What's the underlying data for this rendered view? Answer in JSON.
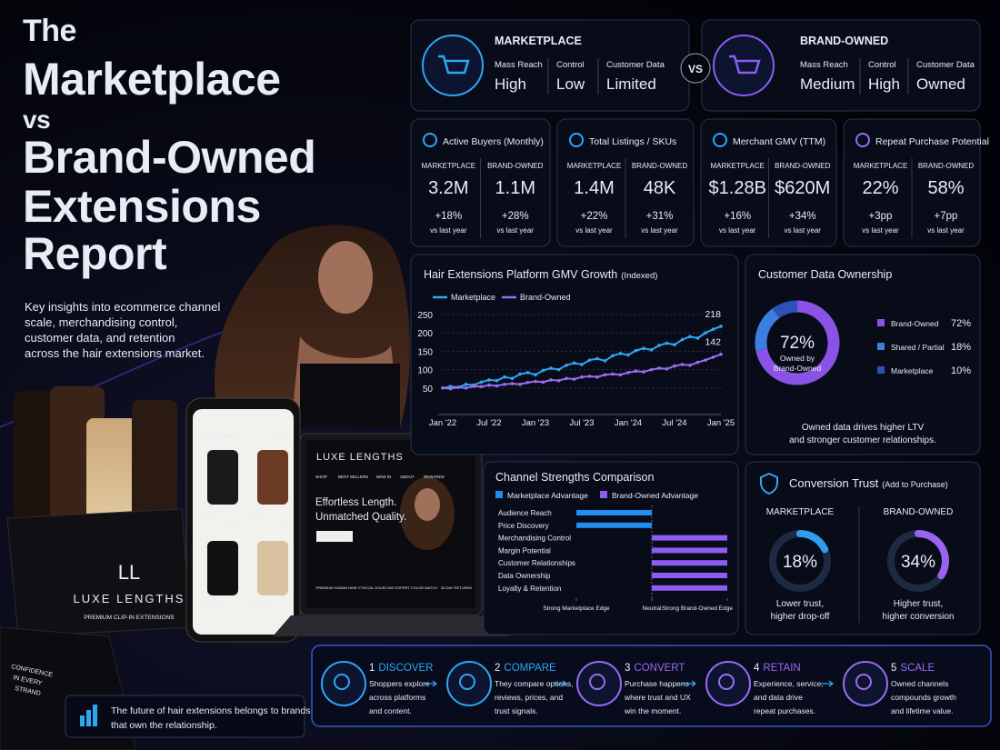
{
  "header": {
    "title_lines": [
      "The",
      "Marketplace",
      "vs",
      "Brand-Owned",
      "Extensions",
      "Report"
    ],
    "subtitle_lines": [
      "Key insights into ecommerce channel",
      "scale, merchandising control,",
      "customer data, and retention",
      "across the hair extensions market."
    ]
  },
  "callout": {
    "line1": "The future of hair extensions belongs to brands",
    "line2": "that own the relationship."
  },
  "comparison": {
    "vs": "VS",
    "panels": [
      {
        "title": "MARKETPLACE",
        "metrics": [
          {
            "label": "Mass Reach",
            "value": "High"
          },
          {
            "label": "Control",
            "value": "Low"
          },
          {
            "label": "Customer Data",
            "value": "Limited"
          }
        ]
      },
      {
        "title": "BRAND-OWNED",
        "metrics": [
          {
            "label": "Mass Reach",
            "value": "Medium"
          },
          {
            "label": "Control",
            "value": "High"
          },
          {
            "label": "Customer Data",
            "value": "Owned"
          }
        ]
      }
    ]
  },
  "kpis": [
    {
      "title": "Active Buyers (Monthly)",
      "columns": [
        {
          "label": "MARKETPLACE",
          "value": "3.2M",
          "change": "+18%",
          "note": "vs last year"
        },
        {
          "label": "BRAND-OWNED",
          "value": "1.1M",
          "change": "+28%",
          "note": "vs last year"
        }
      ]
    },
    {
      "title": "Total Listings / SKUs",
      "columns": [
        {
          "label": "MARKETPLACE",
          "value": "1.4M",
          "change": "+22%",
          "note": "vs last year"
        },
        {
          "label": "BRAND-OWNED",
          "value": "48K",
          "change": "+31%",
          "note": "vs last year"
        }
      ]
    },
    {
      "title": "Merchant GMV (TTM)",
      "columns": [
        {
          "label": "MARKETPLACE",
          "value": "$1.28B",
          "change": "+16%",
          "note": "vs last year"
        },
        {
          "label": "BRAND-OWNED",
          "value": "$620M",
          "change": "+34%",
          "note": "vs last year"
        }
      ]
    },
    {
      "title": "Repeat Purchase Potential",
      "columns": [
        {
          "label": "MARKETPLACE",
          "value": "22%",
          "change": "+3pp",
          "note": "vs last year"
        },
        {
          "label": "BRAND-OWNED",
          "value": "58%",
          "change": "+7pp",
          "note": "vs last year"
        }
      ]
    }
  ],
  "process": [
    {
      "number": "1",
      "title": "DISCOVER",
      "text": [
        "Shoppers explore",
        "across platforms",
        "and content."
      ]
    },
    {
      "number": "2",
      "title": "COMPARE",
      "text": [
        "They compare options,",
        "reviews, prices, and",
        "trust signals."
      ]
    },
    {
      "number": "3",
      "title": "CONVERT",
      "text": [
        "Purchase happens",
        "where trust and UX",
        "win the moment."
      ]
    },
    {
      "number": "4",
      "title": "RETAIN",
      "text": [
        "Experience, service,",
        "and data drive",
        "repeat purchases."
      ]
    },
    {
      "number": "5",
      "title": "SCALE",
      "text": [
        "Owned channels",
        "compounds growth",
        "and lifetime value."
      ]
    }
  ],
  "product": {
    "monogram": "LL",
    "brand": "LUXE LENGTHS",
    "tagline": "PREMIUM CLIP-IN EXTENSIONS",
    "side_box": [
      "CONFIDENCE",
      "IN EVERY",
      "STRAND"
    ],
    "phone": {
      "heading": "Top Results",
      "filter": "Filters",
      "items": [
        {
          "price": "$79",
          "cents": "99",
          "reviews": "(4,632)"
        },
        {
          "price": "$89",
          "cents": "99",
          "reviews": "(2,118)"
        },
        {
          "price": "$69",
          "cents": "99",
          "reviews": "(2,843)"
        },
        {
          "price": "$74",
          "cents": "99",
          "reviews": "(1,824)"
        }
      ]
    },
    "laptop": {
      "brand": "LUXE LENGTHS",
      "nav": [
        "SHOP",
        "BEST SELLERS",
        "NEW IN",
        "ABOUT",
        "REWARDS"
      ],
      "headline": [
        "Effortless Length.",
        "Unmatched Quality."
      ],
      "button": "SHOP NOW",
      "features": [
        "PREMIUM HUMAN HAIR",
        "ETHICAL SOURCING",
        "EXPERT COLOR MATCH",
        "30-DAY RETURNS"
      ]
    }
  },
  "chart_data": [
    {
      "type": "line",
      "title": "Hair Extensions Platform GMV Growth",
      "title_note": "(Indexed)",
      "categories": [
        "Jan '22",
        null,
        null,
        null,
        null,
        null,
        "Jul '22",
        null,
        null,
        null,
        null,
        null,
        "Jan '23",
        null,
        null,
        null,
        null,
        null,
        "Jul '23",
        null,
        null,
        null,
        null,
        null,
        "Jan '24",
        null,
        null,
        null,
        null,
        null,
        "Jul '24",
        null,
        null,
        null,
        null,
        null,
        "Jan '25"
      ],
      "series": [
        {
          "name": "Marketplace",
          "color": "#2fa6f2",
          "values": [
            50,
            54,
            52,
            60,
            58,
            66,
            72,
            70,
            80,
            76,
            88,
            92,
            86,
            98,
            104,
            100,
            112,
            118,
            114,
            126,
            130,
            124,
            138,
            144,
            140,
            152,
            158,
            154,
            166,
            172,
            168,
            182,
            190,
            186,
            200,
            210,
            218
          ]
        },
        {
          "name": "Brand-Owned",
          "color": "#9a6cf0",
          "values": [
            50,
            48,
            52,
            50,
            55,
            54,
            58,
            56,
            60,
            62,
            60,
            65,
            68,
            66,
            72,
            70,
            76,
            74,
            80,
            82,
            80,
            86,
            88,
            86,
            92,
            96,
            94,
            100,
            104,
            102,
            110,
            114,
            112,
            120,
            126,
            134,
            142
          ]
        }
      ],
      "ylim": [
        0,
        260
      ],
      "yticks": [
        50,
        100,
        150,
        200,
        250
      ],
      "grid": true
    },
    {
      "type": "pie",
      "title": "Customer Data Ownership",
      "categories": [
        "Brand-Owned",
        "Shared / Partial",
        "Marketplace"
      ],
      "values": [
        72,
        18,
        10
      ],
      "value_labels": [
        "72%",
        "18%",
        "10%"
      ],
      "colors": [
        "#8b52e8",
        "#3d7fe0",
        "#2a52b8"
      ],
      "center_label": [
        "Owned by",
        "Brand-Owned"
      ],
      "footer": [
        "Owned data drives higher LTV",
        "and stronger customer relationships."
      ]
    },
    {
      "type": "bar",
      "orientation": "horizontal",
      "title": "Channel Strengths Comparison",
      "legend": [
        {
          "name": "Marketplace Advantage",
          "color": "#1f8ef0"
        },
        {
          "name": "Brand-Owned Advantage",
          "color": "#8d5cf2"
        }
      ],
      "categories": [
        "Audience Reach",
        "Price Discovery",
        "Merchandising Control",
        "Margin Potential",
        "Customer Relationships",
        "Data Ownership",
        "Loyalty & Retention"
      ],
      "values": [
        -100,
        -100,
        100,
        100,
        100,
        100,
        100
      ],
      "xlim": [
        -100,
        100
      ],
      "xticks": [
        {
          "value": -100,
          "label": "Strong Marketplace Edge"
        },
        {
          "value": 0,
          "label": "Neutral"
        },
        {
          "value": 100,
          "label": "Strong Brand-Owned Edge"
        }
      ]
    },
    {
      "type": "gauge",
      "title": "Conversion Trust",
      "title_note": "(Add to Purchase)",
      "categories": [
        "MARKETPLACE",
        "BRAND-OWNED"
      ],
      "values": [
        18,
        34
      ],
      "value_labels": [
        "18%",
        "34%"
      ],
      "colors": [
        "#2f9cf0",
        "#9a62f0"
      ],
      "ylim": [
        0,
        100
      ],
      "captions": [
        [
          "Lower trust,",
          "higher drop-off"
        ],
        [
          "Higher trust,",
          "higher conversion"
        ]
      ]
    }
  ]
}
